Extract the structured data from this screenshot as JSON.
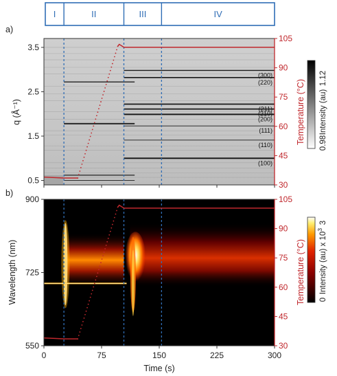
{
  "chart_data": [
    {
      "panel": "a)",
      "type": "heatmap",
      "regions": [
        "I",
        "II",
        "III",
        "IV"
      ],
      "xlabel": "",
      "ylabel": "q (Å⁻¹)",
      "y2label": "Temperature (°C)",
      "xlim": [
        0,
        300
      ],
      "ylim": [
        0.4,
        3.7
      ],
      "y2lim": [
        30,
        105
      ],
      "yticks": [
        "0.5",
        "1.5",
        "2.5",
        "3.5"
      ],
      "y2ticks": [
        "30",
        "45",
        "60",
        "75",
        "90",
        "105"
      ],
      "region_boundaries_s": [
        26,
        104,
        153
      ],
      "peaks": [
        {
          "label": "(300)",
          "q": 2.98,
          "start_s": 104
        },
        {
          "label": "(220)",
          "q": 2.82,
          "start_s": 104
        },
        {
          "label": "(211)",
          "q": 2.22,
          "start_s": 104
        },
        {
          "label": "(210)",
          "q": 2.11,
          "start_s": 104
        },
        {
          "label": "(200)",
          "q": 1.99,
          "start_s": 104
        },
        {
          "label": "(111)",
          "q": 1.73,
          "start_s": 104
        },
        {
          "label": "(110)",
          "q": 1.41,
          "start_s": 104
        },
        {
          "label": "(100)",
          "q": 1.0,
          "start_s": 104
        }
      ],
      "colorbar": {
        "label": "Intensity (au)",
        "min": "0.98",
        "max": "1.12"
      },
      "temperature": {
        "x": [
          0,
          26,
          44,
          96,
          98,
          104,
          300
        ],
        "y": [
          34,
          33.5,
          33.5,
          101,
          102,
          100.5,
          100.5
        ]
      }
    },
    {
      "panel": "b)",
      "type": "heatmap",
      "xlabel": "Time (s)",
      "ylabel": "Wavelength (nm)",
      "y2label": "Temperature (°C)",
      "xlim": [
        0,
        300
      ],
      "ylim": [
        550,
        900
      ],
      "y2lim": [
        30,
        105
      ],
      "xticks": [
        "0",
        "75",
        "150",
        "225",
        "300"
      ],
      "yticks": [
        "550",
        "725",
        "900"
      ],
      "y2ticks": [
        "30",
        "45",
        "60",
        "75",
        "90",
        "105"
      ],
      "colorbar": {
        "label": "Intensity (au) x 10",
        "exponent": "3",
        "min": "0",
        "max": "3"
      },
      "temperature": {
        "x": [
          0,
          26,
          44,
          96,
          98,
          104,
          300
        ],
        "y": [
          34,
          33.5,
          33.5,
          101,
          102,
          100.5,
          100.5
        ]
      }
    }
  ],
  "colors": {
    "temperature": "#c0282d",
    "region": "#2f6db5"
  }
}
